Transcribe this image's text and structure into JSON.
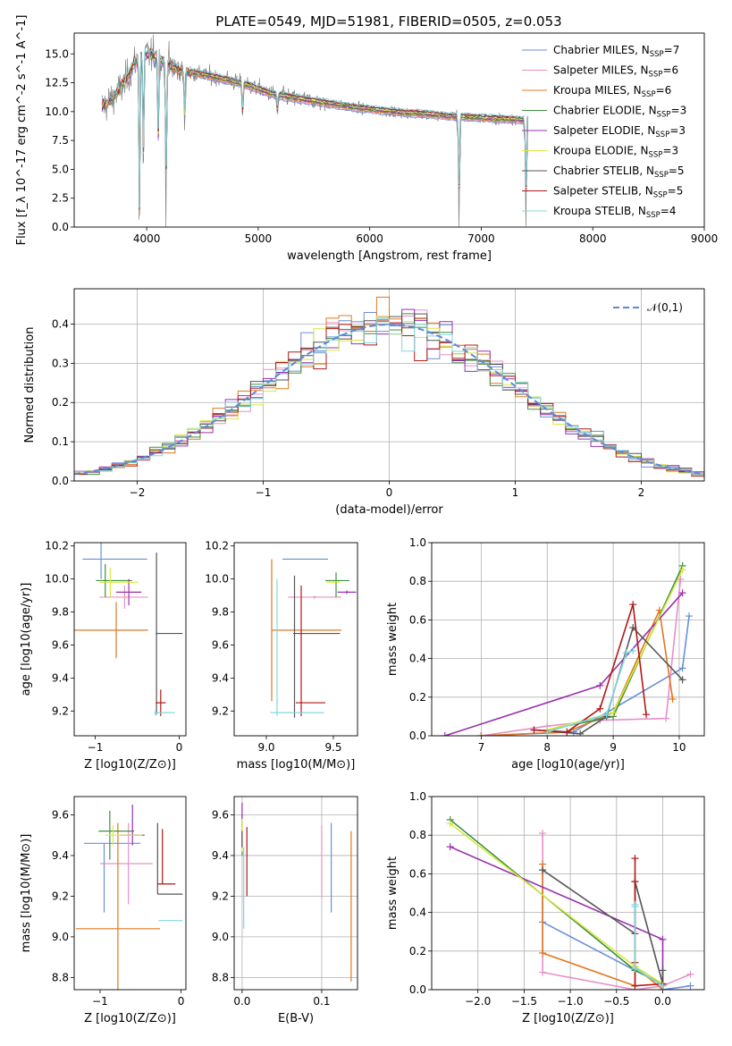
{
  "figure_title": "PLATE=0549, MJD=51981, FIBERID=0505, z=0.053",
  "colors": {
    "Chabrier MILES": "#6a8fd8",
    "Salpeter MILES": "#e890c8",
    "Kroupa MILES": "#e07820",
    "Chabrier ELODIE": "#3f8f3f",
    "Salpeter ELODIE": "#9a30b0",
    "Kroupa ELODIE": "#d8e840",
    "Chabrier STELIB": "#555555",
    "Salpeter STELIB": "#b01818",
    "Kroupa STELIB": "#80d8e0",
    "data": "#808080",
    "normal": "#5b8bd8"
  },
  "chart_data": [
    {
      "id": "spectrum",
      "type": "line",
      "title": "PLATE=0549, MJD=51981, FIBERID=0505, z=0.053",
      "xlabel": "wavelength [Angstrom, rest frame]",
      "ylabel": "Flux [f_λ 10^-17 erg cm^-2 s^-1 A^-1]",
      "xlim": [
        3350,
        9000
      ],
      "ylim": [
        0,
        16.8
      ],
      "xticks": [
        "4000",
        "5000",
        "6000",
        "7000",
        "8000",
        "9000"
      ],
      "yticks": [
        "0.0",
        "2.5",
        "5.0",
        "7.5",
        "10.0",
        "12.5",
        "15.0"
      ],
      "legend_position": "right",
      "legend": [
        "Chabrier MILES, N_SSP=7",
        "Salpeter MILES, N_SSP=6",
        "Kroupa MILES, N_SSP=6",
        "Chabrier ELODIE, N_SSP=3",
        "Salpeter ELODIE, N_SSP=3",
        "Kroupa ELODIE, N_SSP=3",
        "Chabrier STELIB, N_SSP=5",
        "Salpeter STELIB, N_SSP=5",
        "Kroupa STELIB, N_SSP=4"
      ],
      "continuum": {
        "x": [
          3600,
          3700,
          3800,
          3900,
          4000,
          4100,
          4200,
          4300,
          4500,
          4700,
          4900,
          5100,
          5300,
          5500,
          5700,
          5900,
          6100,
          6300,
          6500,
          6700,
          6900,
          7100,
          7300,
          7500,
          7700,
          7900,
          8100,
          8300,
          8500,
          8700,
          8900
        ],
        "y": [
          10.4,
          11.2,
          12.4,
          14.4,
          15.0,
          14.6,
          14.0,
          13.6,
          13.2,
          12.8,
          12.3,
          11.6,
          11.2,
          10.9,
          10.6,
          10.3,
          10.1,
          9.9,
          9.8,
          9.6,
          9.5,
          9.4,
          9.3,
          9.2,
          9.05,
          9.0,
          8.9,
          8.8,
          8.75,
          8.7,
          8.6
        ]
      },
      "absorption_features": [
        {
          "x": 3934,
          "depth": 1.0
        },
        {
          "x": 3969,
          "depth": 0.7
        },
        {
          "x": 4102,
          "depth": 0.5
        },
        {
          "x": 4172,
          "depth": 1.0
        },
        {
          "x": 4340,
          "depth": 0.4
        },
        {
          "x": 4861,
          "depth": 0.2
        },
        {
          "x": 5175,
          "depth": 0.15
        },
        {
          "x": 6800,
          "depth": 1.0
        },
        {
          "x": 7400,
          "depth": 1.0
        }
      ]
    },
    {
      "id": "residuals",
      "type": "area",
      "xlabel": "(data-model)/error",
      "ylabel": "Normed distribution",
      "xlim": [
        -2.5,
        2.5
      ],
      "ylim": [
        0,
        0.49
      ],
      "xticks": [
        "−2",
        "−1",
        "0",
        "1",
        "2"
      ],
      "yticks": [
        "0.0",
        "0.1",
        "0.2",
        "0.3",
        "0.4"
      ],
      "legend": [
        "𝒩(0,1)"
      ],
      "legend_position": "top-right",
      "bin_width": 0.1
    },
    {
      "id": "age_vs_Z",
      "type": "scatter",
      "xlabel": "Z [log10(Z/Z⊙)]",
      "ylabel": "age  [log10(age/yr)]",
      "xlim": [
        -1.25,
        0.08
      ],
      "ylim": [
        9.05,
        10.22
      ],
      "xticks": [
        "−1",
        "0"
      ],
      "yticks": [
        "9.2",
        "9.4",
        "9.6",
        "9.8",
        "10.0",
        "10.2"
      ],
      "points": [
        {
          "model": "Chabrier MILES",
          "x": -0.93,
          "y": 10.12,
          "xerr": [
            0.22,
            0.55
          ],
          "yerr": [
            0.12,
            0.12
          ]
        },
        {
          "model": "Salpeter MILES",
          "x": -0.65,
          "y": 9.89,
          "xerr": [
            0.3,
            0.28
          ],
          "yerr": [
            0.07,
            0.07
          ]
        },
        {
          "model": "Kroupa MILES",
          "x": -0.75,
          "y": 9.69,
          "xerr": [
            0.52,
            0.38
          ],
          "yerr": [
            0.17,
            0.17
          ]
        },
        {
          "model": "Chabrier ELODIE",
          "x": -0.88,
          "y": 9.99,
          "xerr": [
            0.11,
            0.32
          ],
          "yerr": [
            0.1,
            0.1
          ]
        },
        {
          "model": "Salpeter ELODIE",
          "x": -0.6,
          "y": 9.92,
          "xerr": [
            0.15,
            0.15
          ],
          "yerr": [
            0.08,
            0.08
          ]
        },
        {
          "model": "Kroupa ELODIE",
          "x": -0.82,
          "y": 9.98,
          "xerr": [
            0.13,
            0.33
          ],
          "yerr": [
            0.09,
            0.09
          ]
        },
        {
          "model": "Chabrier STELIB",
          "x": -0.27,
          "y": 9.67,
          "xerr": [
            0.01,
            0.31
          ],
          "yerr": [
            0.49,
            0.49
          ]
        },
        {
          "model": "Salpeter STELIB",
          "x": -0.22,
          "y": 9.25,
          "xerr": [
            0.06,
            0.06
          ],
          "yerr": [
            0.08,
            0.08
          ]
        },
        {
          "model": "Kroupa STELIB",
          "x": -0.28,
          "y": 9.19,
          "xerr": [
            0.02,
            0.23
          ],
          "yerr": [
            0.02,
            0.02
          ]
        }
      ]
    },
    {
      "id": "age_vs_mass",
      "type": "scatter",
      "xlabel": "mass [log10(M/M⊙)]",
      "ylabel": "",
      "xlim": [
        8.76,
        9.68
      ],
      "ylim": [
        9.05,
        10.22
      ],
      "xticks": [
        "9.0",
        "9.5"
      ],
      "yticks": [
        "9.2",
        "9.4",
        "9.6",
        "9.8",
        "10.0",
        "10.2"
      ],
      "points": [
        {
          "model": "Chabrier MILES",
          "x": 9.46,
          "y": 10.12,
          "xerr": [
            0.34,
            0.0
          ],
          "yerr": [
            0.0,
            0.0
          ]
        },
        {
          "model": "Salpeter MILES",
          "x": 9.36,
          "y": 9.89,
          "xerr": [
            0.2,
            0.2
          ],
          "yerr": [
            0.01,
            0.01
          ]
        },
        {
          "model": "Kroupa MILES",
          "x": 9.04,
          "y": 9.69,
          "xerr": [
            0.0,
            0.52
          ],
          "yerr": [
            0.43,
            0.43
          ]
        },
        {
          "model": "Chabrier ELODIE",
          "x": 9.52,
          "y": 9.99,
          "xerr": [
            0.08,
            0.1
          ],
          "yerr": [
            0.1,
            0.05
          ]
        },
        {
          "model": "Salpeter ELODIE",
          "x": 9.6,
          "y": 9.92,
          "xerr": [
            0.07,
            0.07
          ],
          "yerr": [
            0.01,
            0.01
          ]
        },
        {
          "model": "Kroupa ELODIE",
          "x": 9.5,
          "y": 9.98,
          "xerr": [
            0.05,
            0.05
          ],
          "yerr": [
            0.0,
            0.0
          ]
        },
        {
          "model": "Chabrier STELIB",
          "x": 9.21,
          "y": 9.67,
          "xerr": [
            0.01,
            0.34
          ],
          "yerr": [
            0.51,
            0.35
          ]
        },
        {
          "model": "Salpeter STELIB",
          "x": 9.26,
          "y": 9.25,
          "xerr": [
            0.04,
            0.18
          ],
          "yerr": [
            0.08,
            0.71
          ]
        },
        {
          "model": "Kroupa STELIB",
          "x": 9.08,
          "y": 9.19,
          "xerr": [
            0.05,
            0.35
          ],
          "yerr": [
            0.02,
            0.81
          ]
        }
      ]
    },
    {
      "id": "weight_vs_age",
      "type": "line",
      "xlabel": "age  [log10(age/yr)]",
      "ylabel": "mass weight",
      "xlim": [
        6.25,
        10.38
      ],
      "ylim": [
        0,
        1.0
      ],
      "xticks": [
        "7",
        "8",
        "9",
        "10"
      ],
      "yticks": [
        "0.0",
        "0.2",
        "0.4",
        "0.6",
        "0.8",
        "1.0"
      ],
      "series": [
        {
          "model": "Chabrier MILES",
          "x": [
            7.0,
            8.4,
            10.05,
            10.15
          ],
          "y": [
            0.0,
            0.02,
            0.35,
            0.62
          ]
        },
        {
          "model": "Salpeter MILES",
          "x": [
            7.0,
            8.0,
            8.8,
            9.8,
            10.02
          ],
          "y": [
            0.0,
            0.05,
            0.08,
            0.09,
            0.81
          ]
        },
        {
          "model": "Kroupa MILES",
          "x": [
            7.0,
            8.3,
            9.0,
            9.7,
            9.9
          ],
          "y": [
            0.0,
            0.02,
            0.12,
            0.65,
            0.19
          ]
        },
        {
          "model": "Chabrier ELODIE",
          "x": [
            8.0,
            9.0,
            10.05
          ],
          "y": [
            0.03,
            0.1,
            0.88
          ]
        },
        {
          "model": "Salpeter ELODIE",
          "x": [
            6.45,
            8.8,
            10.05
          ],
          "y": [
            0.0,
            0.26,
            0.74
          ]
        },
        {
          "model": "Kroupa ELODIE",
          "x": [
            8.0,
            9.0,
            10.05
          ],
          "y": [
            0.03,
            0.12,
            0.86
          ]
        },
        {
          "model": "Chabrier STELIB",
          "x": [
            7.8,
            8.5,
            8.9,
            9.3,
            10.05
          ],
          "y": [
            0.03,
            0.01,
            0.1,
            0.56,
            0.29
          ]
        },
        {
          "model": "Salpeter STELIB",
          "x": [
            7.8,
            8.3,
            8.8,
            9.3,
            9.5
          ],
          "y": [
            0.03,
            0.02,
            0.14,
            0.68,
            0.11
          ]
        },
        {
          "model": "Kroupa STELIB",
          "x": [
            8.0,
            8.9,
            9.2,
            9.3
          ],
          "y": [
            0.02,
            0.11,
            0.43,
            0.44
          ]
        }
      ]
    },
    {
      "id": "mass_vs_Z",
      "type": "scatter",
      "xlabel": "Z [log10(Z/Z⊙)]",
      "ylabel": "mass [log10(M/M⊙)]",
      "xlim": [
        -1.32,
        0.06
      ],
      "ylim": [
        8.74,
        9.69
      ],
      "xticks": [
        "−1",
        "0"
      ],
      "yticks": [
        "8.8",
        "9.0",
        "9.2",
        "9.4",
        "9.6"
      ],
      "points": [
        {
          "model": "Chabrier MILES",
          "x": -0.95,
          "y": 9.46,
          "xerr": [
            0.25,
            0.45
          ],
          "yerr": [
            0.34,
            0.0
          ]
        },
        {
          "model": "Salpeter MILES",
          "x": -0.65,
          "y": 9.36,
          "xerr": [
            0.35,
            0.3
          ],
          "yerr": [
            0.2,
            0.2
          ]
        },
        {
          "model": "Kroupa MILES",
          "x": -0.78,
          "y": 9.04,
          "xerr": [
            0.52,
            0.52
          ],
          "yerr": [
            0.3,
            0.52
          ]
        },
        {
          "model": "Chabrier ELODIE",
          "x": -0.88,
          "y": 9.52,
          "xerr": [
            0.14,
            0.3
          ],
          "yerr": [
            0.14,
            0.1
          ]
        },
        {
          "model": "Salpeter ELODIE",
          "x": -0.6,
          "y": 9.5,
          "xerr": [
            0.15,
            0.15
          ],
          "yerr": [
            0.05,
            0.15
          ]
        },
        {
          "model": "Kroupa ELODIE",
          "x": -0.84,
          "y": 9.5,
          "xerr": [
            0.1,
            0.36
          ],
          "yerr": [
            0.05,
            0.05
          ]
        },
        {
          "model": "Chabrier STELIB",
          "x": -0.29,
          "y": 9.21,
          "xerr": [
            0.0,
            0.31
          ],
          "yerr": [
            0.0,
            0.35
          ]
        },
        {
          "model": "Salpeter STELIB",
          "x": -0.23,
          "y": 9.26,
          "xerr": [
            0.06,
            0.16
          ],
          "yerr": [
            0.0,
            0.27
          ]
        },
        {
          "model": "Kroupa STELIB",
          "x": -0.28,
          "y": 9.08,
          "xerr": [
            0.0,
            0.3
          ],
          "yerr": [
            0.0,
            0.0
          ]
        }
      ]
    },
    {
      "id": "mass_vs_ebv",
      "type": "scatter",
      "xlabel": "E(B-V)",
      "ylabel": "",
      "xlim": [
        -0.01,
        0.145
      ],
      "ylim": [
        8.74,
        9.69
      ],
      "xticks": [
        "0.0",
        "0.1"
      ],
      "yticks": [
        "8.8",
        "9.0",
        "9.2",
        "9.4",
        "9.6"
      ],
      "points": [
        {
          "model": "Chabrier MILES",
          "x": 0.112,
          "y": 9.34,
          "xerr": [
            0,
            0
          ],
          "yerr": [
            0.22,
            0.22
          ]
        },
        {
          "model": "Salpeter MILES",
          "x": 0.1,
          "y": 9.37,
          "xerr": [
            0,
            0
          ],
          "yerr": [
            0.18,
            0.18
          ]
        },
        {
          "model": "Kroupa MILES",
          "x": 0.137,
          "y": 9.15,
          "xerr": [
            0,
            0
          ],
          "yerr": [
            0.37,
            0.37
          ]
        },
        {
          "model": "Chabrier ELODIE",
          "x": 0.0,
          "y": 9.5,
          "xerr": [
            0,
            0
          ],
          "yerr": [
            0.1,
            0.1
          ]
        },
        {
          "model": "Salpeter ELODIE",
          "x": 0.0,
          "y": 9.55,
          "xerr": [
            0,
            0
          ],
          "yerr": [
            0.11,
            0.11
          ]
        },
        {
          "model": "Kroupa ELODIE",
          "x": 0.0,
          "y": 9.5,
          "xerr": [
            0,
            0
          ],
          "yerr": [
            0.08,
            0.08
          ]
        },
        {
          "model": "Chabrier STELIB",
          "x": 0.0,
          "y": 9.48,
          "xerr": [
            0,
            0
          ],
          "yerr": [
            0.04,
            0.04
          ]
        },
        {
          "model": "Salpeter STELIB",
          "x": 0.006,
          "y": 9.37,
          "xerr": [
            0,
            0
          ],
          "yerr": [
            0.17,
            0.17
          ]
        },
        {
          "model": "Kroupa STELIB",
          "x": 0.002,
          "y": 9.24,
          "xerr": [
            0,
            0
          ],
          "yerr": [
            0.2,
            0.2
          ]
        }
      ]
    },
    {
      "id": "weight_vs_Z",
      "type": "line",
      "xlabel": "Z [log10(Z/Z⊙)]",
      "ylabel": "mass weight",
      "xlim": [
        -2.5,
        0.45
      ],
      "ylim": [
        0,
        1.0
      ],
      "xticks": [
        "−2.0",
        "−1.5",
        "−1.0",
        "−0.5",
        "0.0"
      ],
      "yticks": [
        "0.0",
        "0.2",
        "0.4",
        "0.6",
        "0.8",
        "1.0"
      ],
      "series": [
        {
          "model": "Chabrier MILES",
          "x": [
            -1.3,
            -1.3,
            -0.3,
            0.0,
            0.0,
            0.3
          ],
          "y": [
            0.62,
            0.35,
            0.1,
            0.03,
            0.0,
            0.02
          ]
        },
        {
          "model": "Salpeter MILES",
          "x": [
            -1.3,
            -1.3,
            -0.3,
            0.0,
            0.3
          ],
          "y": [
            0.81,
            0.09,
            0.0,
            0.02,
            0.08
          ]
        },
        {
          "model": "Kroupa MILES",
          "x": [
            -1.3,
            -1.3,
            -0.3,
            -0.3,
            0.0,
            0.0
          ],
          "y": [
            0.65,
            0.19,
            0.02,
            0.12,
            0.0,
            0.02
          ]
        },
        {
          "model": "Chabrier ELODIE",
          "x": [
            -2.3,
            -0.3,
            0.0
          ],
          "y": [
            0.88,
            0.1,
            0.03
          ]
        },
        {
          "model": "Salpeter ELODIE",
          "x": [
            -2.3,
            0.0,
            0.0
          ],
          "y": [
            0.74,
            0.26,
            0.0
          ]
        },
        {
          "model": "Kroupa ELODIE",
          "x": [
            -2.3,
            -0.3,
            0.0
          ],
          "y": [
            0.86,
            0.12,
            0.03
          ]
        },
        {
          "model": "Chabrier STELIB",
          "x": [
            -1.3,
            -0.3,
            -0.3,
            0.0,
            0.0
          ],
          "y": [
            0.62,
            0.29,
            0.56,
            0.03,
            0.1
          ]
        },
        {
          "model": "Salpeter STELIB",
          "x": [
            -0.3,
            -0.3,
            -0.3,
            -0.3,
            0.0
          ],
          "y": [
            0.68,
            0.56,
            0.14,
            0.02,
            0.03
          ]
        },
        {
          "model": "Kroupa STELIB",
          "x": [
            -0.3,
            -0.3,
            -0.3,
            0.0
          ],
          "y": [
            0.44,
            0.43,
            0.11,
            0.02
          ]
        }
      ]
    }
  ]
}
